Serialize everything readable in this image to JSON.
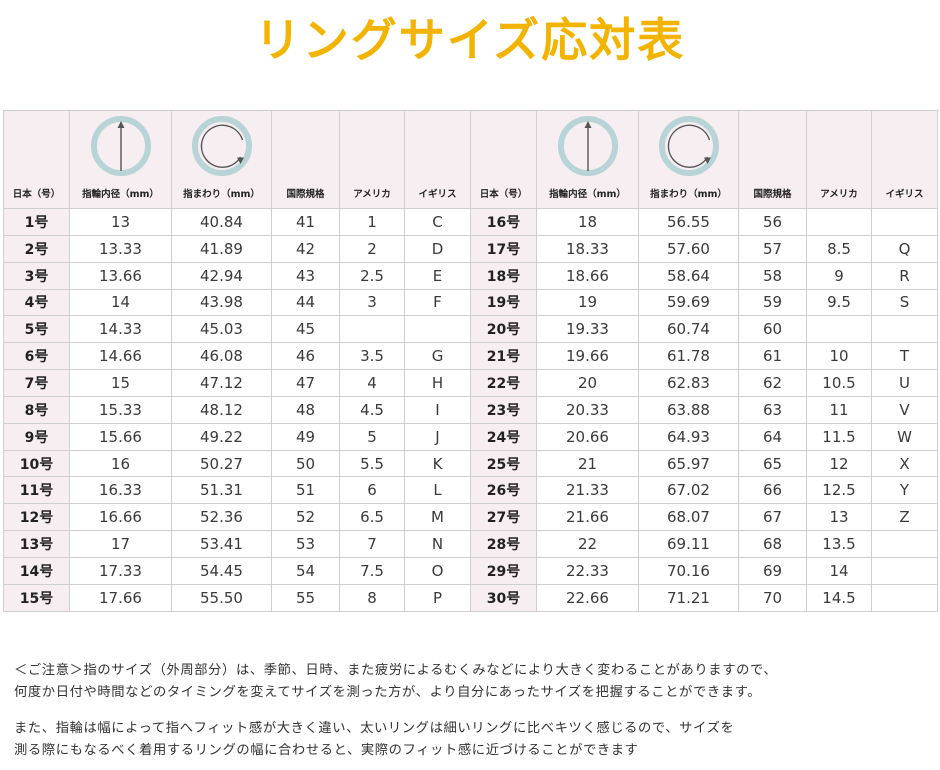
{
  "title": "リングサイズ応対表",
  "headers": [
    "日本（号）",
    "指輪内径（mm）",
    "指まわり（mm）",
    "国際規格",
    "アメリカ",
    "イギリス"
  ],
  "header_icons": [
    "",
    "ring-diameter-icon",
    "ring-circumference-icon",
    "",
    "",
    ""
  ],
  "rows_left": [
    [
      "1号",
      "13",
      "40.84",
      "41",
      "1",
      "C"
    ],
    [
      "2号",
      "13.33",
      "41.89",
      "42",
      "2",
      "D"
    ],
    [
      "3号",
      "13.66",
      "42.94",
      "43",
      "2.5",
      "E"
    ],
    [
      "4号",
      "14",
      "43.98",
      "44",
      "3",
      "F"
    ],
    [
      "5号",
      "14.33",
      "45.03",
      "45",
      "",
      ""
    ],
    [
      "6号",
      "14.66",
      "46.08",
      "46",
      "3.5",
      "G"
    ],
    [
      "7号",
      "15",
      "47.12",
      "47",
      "4",
      "H"
    ],
    [
      "8号",
      "15.33",
      "48.12",
      "48",
      "4.5",
      "I"
    ],
    [
      "9号",
      "15.66",
      "49.22",
      "49",
      "5",
      "J"
    ],
    [
      "10号",
      "16",
      "50.27",
      "50",
      "5.5",
      "K"
    ],
    [
      "11号",
      "16.33",
      "51.31",
      "51",
      "6",
      "L"
    ],
    [
      "12号",
      "16.66",
      "52.36",
      "52",
      "6.5",
      "M"
    ],
    [
      "13号",
      "17",
      "53.41",
      "53",
      "7",
      "N"
    ],
    [
      "14号",
      "17.33",
      "54.45",
      "54",
      "7.5",
      "O"
    ],
    [
      "15号",
      "17.66",
      "55.50",
      "55",
      "8",
      "P"
    ]
  ],
  "rows_right": [
    [
      "16号",
      "18",
      "56.55",
      "56",
      "",
      ""
    ],
    [
      "17号",
      "18.33",
      "57.60",
      "57",
      "8.5",
      "Q"
    ],
    [
      "18号",
      "18.66",
      "58.64",
      "58",
      "9",
      "R"
    ],
    [
      "19号",
      "19",
      "59.69",
      "59",
      "9.5",
      "S"
    ],
    [
      "20号",
      "19.33",
      "60.74",
      "60",
      "",
      ""
    ],
    [
      "21号",
      "19.66",
      "61.78",
      "61",
      "10",
      "T"
    ],
    [
      "22号",
      "20",
      "62.83",
      "62",
      "10.5",
      "U"
    ],
    [
      "23号",
      "20.33",
      "63.88",
      "63",
      "11",
      "V"
    ],
    [
      "24号",
      "20.66",
      "64.93",
      "64",
      "11.5",
      "W"
    ],
    [
      "25号",
      "21",
      "65.97",
      "65",
      "12",
      "X"
    ],
    [
      "26号",
      "21.33",
      "67.02",
      "66",
      "12.5",
      "Y"
    ],
    [
      "27号",
      "21.66",
      "68.07",
      "67",
      "13",
      "Z"
    ],
    [
      "28号",
      "22",
      "69.11",
      "68",
      "13.5",
      ""
    ],
    [
      "29号",
      "22.33",
      "70.16",
      "69",
      "14",
      ""
    ],
    [
      "30号",
      "22.66",
      "71.21",
      "70",
      "14.5",
      ""
    ]
  ],
  "notes": [
    [
      "＜ご注意＞指のサイズ（外周部分）は、季節、日時、また疲労によるむくみなどにより大きく変わることがありますので、",
      "何度か日付や時間などのタイミングを変えてサイズを測った方が、より自分にあったサイズを把握することができます。"
    ],
    [
      "また、指輪は幅によって指へフィット感が大きく違い、太いリングは細いリングに比べキツく感じるので、サイズを",
      "測る際にもなるべく着用するリングの幅に合わせると、実際のフィット感に近づけることができます"
    ]
  ],
  "colors": {
    "title": "#f2b400",
    "header_bg": "#f7eef2",
    "icon_ring": "#b8d4d6",
    "icon_arrow": "#555555"
  }
}
